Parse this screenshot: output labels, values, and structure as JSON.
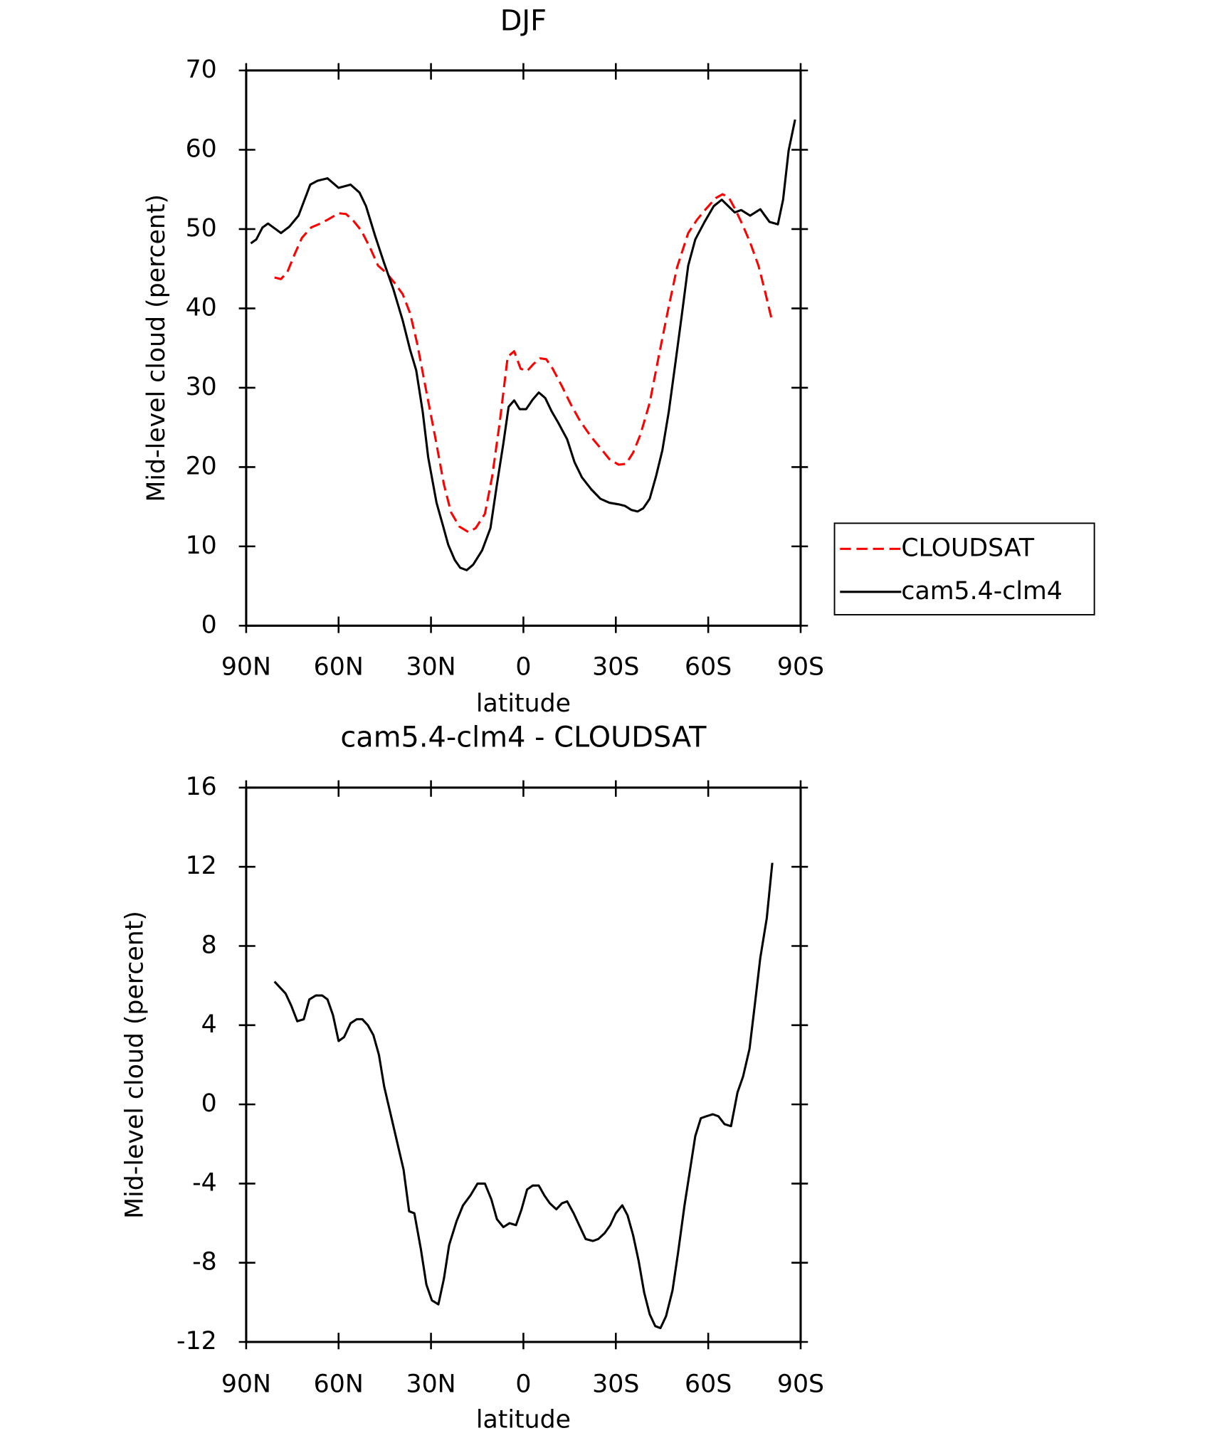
{
  "chart_data": [
    {
      "type": "line",
      "title": "DJF",
      "xlabel": "latitude",
      "ylabel": "Mid-level cloud (percent)",
      "xlim": [
        90,
        -90
      ],
      "ylim": [
        0,
        70
      ],
      "xticks": [
        {
          "value": 90,
          "label": "90N"
        },
        {
          "value": 60,
          "label": "60N"
        },
        {
          "value": 30,
          "label": "30N"
        },
        0,
        {
          "value": -30,
          "label": "30S"
        },
        {
          "value": -60,
          "label": "60S"
        },
        {
          "value": -90,
          "label": "90S"
        }
      ],
      "yticks": [
        0,
        10,
        20,
        30,
        40,
        50,
        60,
        70
      ],
      "legend": "right",
      "series": [
        {
          "name": "CLOUDSAT",
          "color": "#ff0000",
          "style": "dashed",
          "x": [
            80.8,
            78.7,
            76.6,
            74.3,
            71.9,
            68.9,
            65.9,
            63,
            60,
            57.6,
            55.3,
            52.6,
            49.6,
            47.2,
            44.3,
            41.6,
            39.2,
            36.8,
            34.5,
            31.5,
            28.5,
            25.8,
            23.5,
            20.8,
            17.8,
            15.5,
            12.5,
            10.1,
            7.7,
            5.1,
            3,
            0.9,
            -1.2,
            -3.3,
            -5.4,
            -7.4,
            -9.5,
            -12.5,
            -15.4,
            -18.4,
            -22,
            -25,
            -27.9,
            -30.9,
            -33.3,
            -35.6,
            -38,
            -41,
            -43.9,
            -46.9,
            -49.9,
            -53.5,
            -56.4,
            -59.4,
            -62.4,
            -64.7,
            -66.8,
            -68.9,
            -71.3,
            -73.6,
            -76.3,
            -78.4,
            -80.8
          ],
          "values": [
            43.9,
            43.7,
            44.6,
            46.8,
            48.9,
            50.2,
            50.7,
            51.3,
            52,
            51.9,
            51.1,
            49.8,
            47.5,
            45.4,
            44.4,
            43.1,
            41.8,
            39.4,
            35.6,
            29.5,
            23.5,
            17.8,
            14.3,
            12.5,
            11.8,
            12.3,
            14.1,
            18.9,
            25.6,
            33.9,
            34.6,
            32.4,
            32.1,
            33,
            33.7,
            33.6,
            32.4,
            30.2,
            27.9,
            25.8,
            23.8,
            22.4,
            21,
            20.3,
            20.4,
            21.8,
            24.1,
            28.1,
            33.9,
            39.7,
            45.2,
            49.5,
            51.2,
            52.6,
            53.9,
            54.4,
            53.9,
            52.4,
            50.4,
            48.3,
            45.4,
            42.2,
            38.3
          ]
        },
        {
          "name": "cam5.4-clm4",
          "color": "#000000",
          "style": "solid",
          "x": [
            88.5,
            86.7,
            84.7,
            82.9,
            78.7,
            76,
            73,
            69.2,
            66.8,
            63.6,
            60,
            56.1,
            53.2,
            51.1,
            48.1,
            45.2,
            42.2,
            39.2,
            36.8,
            34.8,
            32.7,
            30.9,
            28.2,
            26.1,
            24.4,
            22.3,
            20.5,
            18.4,
            16.3,
            13.4,
            10.7,
            8.6,
            6.5,
            4.8,
            3,
            1.2,
            -0.9,
            -3,
            -5,
            -7.1,
            -9.2,
            -11.3,
            -14.2,
            -16.6,
            -19,
            -22,
            -25,
            -27.9,
            -30.9,
            -33,
            -35,
            -37.1,
            -38.9,
            -41,
            -43.1,
            -45.1,
            -47.2,
            -49.3,
            -51.4,
            -53.5,
            -55.8,
            -58.8,
            -61.8,
            -64.4,
            -66.5,
            -68.6,
            -70.7,
            -73.6,
            -76.9,
            -79.9,
            -82.6,
            -84.3,
            -86.1,
            -88.2
          ],
          "values": [
            48.2,
            48.7,
            50.2,
            50.7,
            49.5,
            50.3,
            51.7,
            55.6,
            56.1,
            56.4,
            55.2,
            55.6,
            54.6,
            52.9,
            49.1,
            45.7,
            42.4,
            38.5,
            34.8,
            32.2,
            27,
            21.2,
            15.5,
            12.6,
            10.2,
            8.3,
            7.3,
            7,
            7.7,
            9.5,
            12.3,
            17.8,
            23,
            27.6,
            28.4,
            27.3,
            27.3,
            28.5,
            29.4,
            28.7,
            27,
            25.6,
            23.5,
            20.6,
            18.7,
            17.2,
            16,
            15.5,
            15.3,
            15.1,
            14.6,
            14.4,
            14.8,
            16,
            18.9,
            22.1,
            27,
            33,
            39.1,
            45.4,
            48.7,
            50.9,
            52.9,
            53.7,
            52.9,
            52.1,
            52.4,
            51.7,
            52.5,
            50.9,
            50.6,
            53.7,
            59.9,
            63.8
          ]
        }
      ]
    },
    {
      "type": "line",
      "title": "cam5.4-clm4 - CLOUDSAT",
      "xlabel": "latitude",
      "ylabel": "Mid-level cloud (percent)",
      "xlim": [
        90,
        -90
      ],
      "ylim": [
        -12,
        16
      ],
      "xticks": [
        {
          "value": 90,
          "label": "90N"
        },
        {
          "value": 60,
          "label": "60N"
        },
        {
          "value": 30,
          "label": "30N"
        },
        0,
        {
          "value": -30,
          "label": "30S"
        },
        {
          "value": -60,
          "label": "60S"
        },
        {
          "value": -90,
          "label": "90S"
        }
      ],
      "yticks": [
        -12,
        -8,
        -4,
        0,
        4,
        8,
        12,
        16
      ],
      "color": "#000000",
      "x": [
        80.8,
        79,
        77.2,
        75.4,
        73.4,
        71.3,
        69.5,
        67.4,
        65.3,
        63.6,
        61.8,
        60,
        58.2,
        56.1,
        54.1,
        52.3,
        50.5,
        48.7,
        46.9,
        45.2,
        43.1,
        41,
        38.9,
        37.1,
        35.4,
        33.3,
        31.5,
        29.7,
        27.6,
        25.8,
        24.1,
        21.7,
        19.6,
        17.2,
        14.9,
        12.5,
        10.4,
        8.6,
        6.5,
        4.5,
        2.4,
        0.6,
        -1.2,
        -3,
        -5,
        -6.8,
        -8.6,
        -10.7,
        -12.5,
        -14.2,
        -16.3,
        -18.4,
        -20.2,
        -22.6,
        -24.3,
        -26.4,
        -28.2,
        -30,
        -32.1,
        -33.8,
        -35.6,
        -37.4,
        -39.2,
        -41,
        -42.8,
        -44.5,
        -46.3,
        -48.4,
        -50.2,
        -52.3,
        -54.1,
        -55.8,
        -57.6,
        -59.4,
        -61.5,
        -63.3,
        -65.3,
        -67.4,
        -69.5,
        -71.3,
        -73.4,
        -75.1,
        -76.9,
        -79,
        -80.8
      ],
      "values": [
        6.2,
        5.9,
        5.6,
        5,
        4.2,
        4.3,
        5.3,
        5.5,
        5.5,
        5.3,
        4.5,
        3.2,
        3.4,
        4.1,
        4.3,
        4.3,
        4,
        3.5,
        2.5,
        0.9,
        -0.5,
        -1.9,
        -3.3,
        -5.4,
        -5.5,
        -7.3,
        -9.1,
        -9.9,
        -10.1,
        -8.8,
        -7.1,
        -5.9,
        -5.1,
        -4.6,
        -4,
        -4,
        -4.8,
        -5.8,
        -6.2,
        -6,
        -6.1,
        -5.3,
        -4.3,
        -4.1,
        -4.1,
        -4.6,
        -5,
        -5.3,
        -5,
        -4.9,
        -5.5,
        -6.2,
        -6.8,
        -6.9,
        -6.8,
        -6.5,
        -6.1,
        -5.5,
        -5.1,
        -5.6,
        -6.6,
        -7.9,
        -9.5,
        -10.6,
        -11.2,
        -11.3,
        -10.7,
        -9.4,
        -7.5,
        -5.1,
        -3.3,
        -1.6,
        -0.7,
        -0.6,
        -0.5,
        -0.6,
        -1,
        -1.1,
        0.6,
        1.4,
        2.8,
        5,
        7.4,
        9.4,
        12.2
      ]
    }
  ]
}
